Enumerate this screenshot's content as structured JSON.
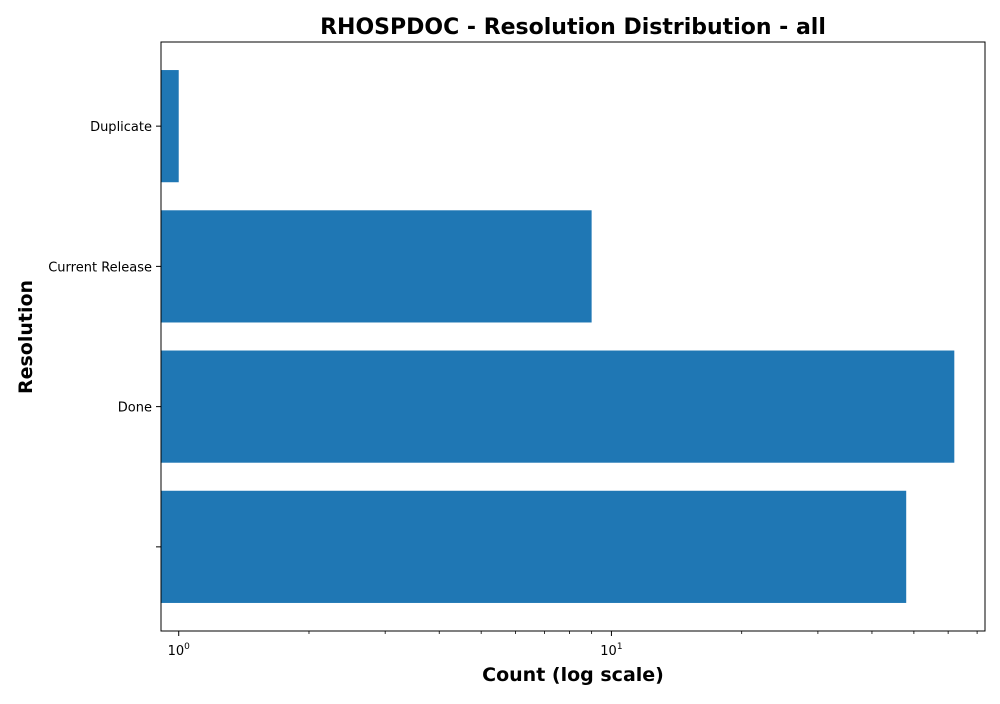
{
  "chart_data": {
    "type": "bar",
    "orientation": "horizontal",
    "title": "RHOSPDOC - Resolution Distribution - all",
    "xlabel": "Count (log scale)",
    "ylabel": "Resolution",
    "x_scale": "log",
    "xlim": [
      0.91,
      73
    ],
    "categories": [
      "Duplicate",
      "Current Release",
      "Done",
      ""
    ],
    "values": [
      1,
      9,
      62,
      48
    ],
    "x_ticks": [
      {
        "value": 1,
        "base": "10",
        "exp": "0"
      },
      {
        "value": 10,
        "base": "10",
        "exp": "1"
      }
    ],
    "bar_color": "#1f77b4",
    "grid": false,
    "legend": "none"
  }
}
